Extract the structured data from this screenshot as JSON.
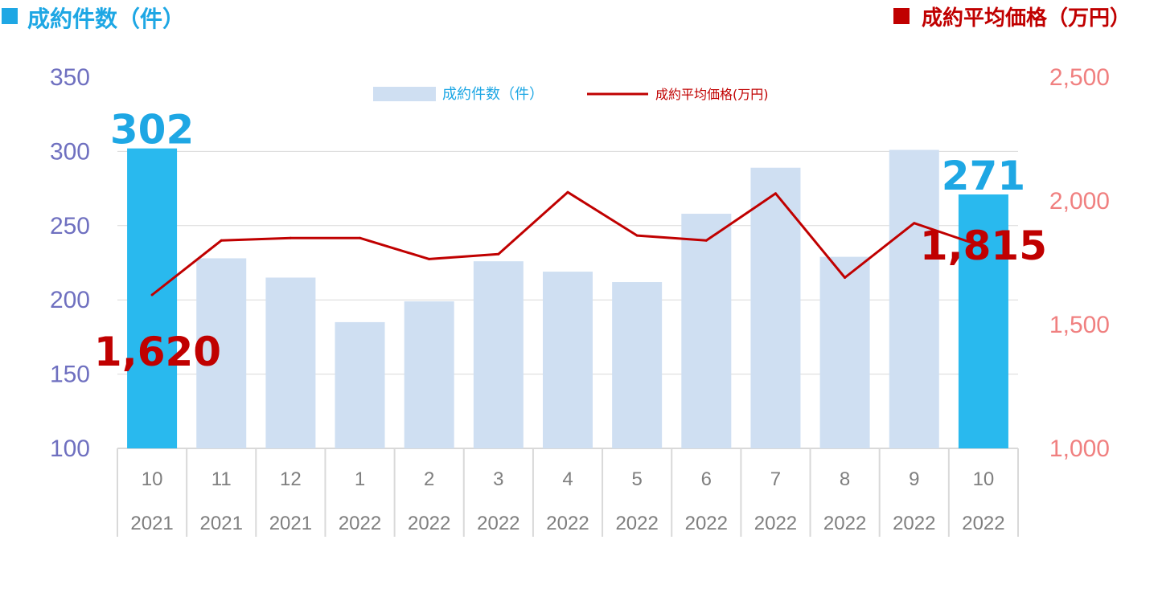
{
  "header": {
    "left_title": "成約件数（件）",
    "right_title": "成約平均価格（万円）"
  },
  "colors": {
    "bar": "#cfdff2",
    "bar_highlight": "#29b9ee",
    "line": "#c00000",
    "left_axis_text": "#6f70c0",
    "right_axis_text": "#f08080",
    "count_label": "#1ea7e4",
    "price_label": "#c00000",
    "grid": "#d9d9d9",
    "category_text": "#7f7f7f"
  },
  "chart_data": {
    "type": "bar",
    "categories": [
      "10",
      "11",
      "12",
      "1",
      "2",
      "3",
      "4",
      "5",
      "6",
      "7",
      "8",
      "9",
      "10"
    ],
    "years": [
      "2021",
      "2021",
      "2021",
      "2022",
      "2022",
      "2022",
      "2022",
      "2022",
      "2022",
      "2022",
      "2022",
      "2022",
      "2022"
    ],
    "series": [
      {
        "name": "成約件数（件）",
        "type": "bar",
        "axis": "left",
        "values": [
          302,
          228,
          215,
          185,
          199,
          226,
          219,
          212,
          258,
          289,
          229,
          301,
          271
        ],
        "highlight": [
          0,
          12
        ]
      },
      {
        "name": "成約平均価格(万円)",
        "type": "line",
        "axis": "right",
        "values": [
          1620,
          1840,
          1850,
          1850,
          1765,
          1785,
          2035,
          1860,
          1840,
          2030,
          1690,
          1910,
          1815
        ]
      }
    ],
    "left_axis": {
      "ylim": [
        100,
        350
      ],
      "ticks": [
        "100",
        "150",
        "200",
        "250",
        "300",
        "350"
      ]
    },
    "right_axis": {
      "ylim": [
        1000,
        2500
      ],
      "ticks": [
        "1,000",
        "1,500",
        "2,000",
        "2,500"
      ]
    },
    "data_labels": [
      {
        "series": "count",
        "index": 0,
        "text": "302"
      },
      {
        "series": "count",
        "index": 12,
        "text": "271"
      },
      {
        "series": "price",
        "index": 0,
        "text": "1,620"
      },
      {
        "series": "price",
        "index": 12,
        "text": "1,815"
      }
    ],
    "legend_position": "top-center",
    "grid": true
  }
}
